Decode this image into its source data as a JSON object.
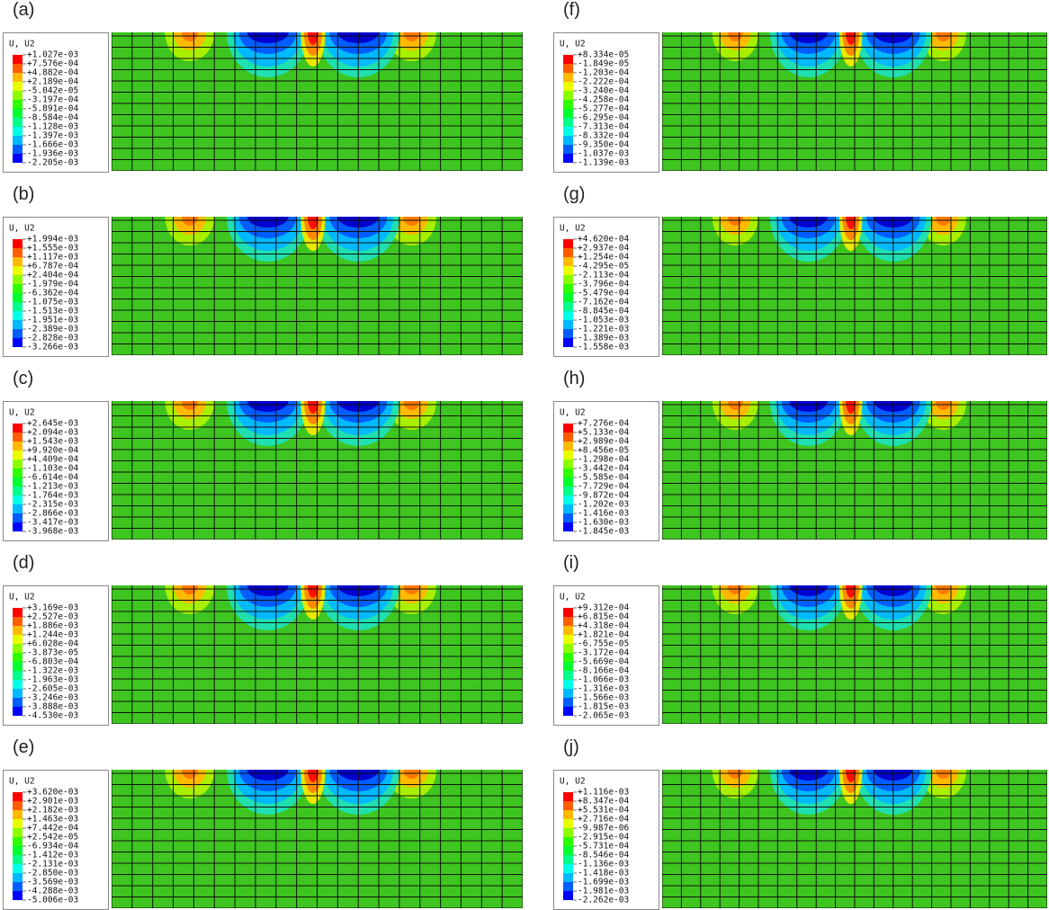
{
  "panels": [
    {
      "label": "(a)",
      "legend_title": "U, U2",
      "legend_values": [
        "+1.027e-03",
        "+7.576e-04",
        "+4.882e-04",
        "+2.189e-04",
        "-5.042e-05",
        "-3.197e-04",
        "-5.891e-04",
        "-8.584e-04",
        "-1.128e-03",
        "-1.397e-03",
        "-1.666e-03",
        "-1.936e-03",
        "-2.205e-03"
      ]
    },
    {
      "label": "(b)",
      "legend_title": "U, U2",
      "legend_values": [
        "+1.994e-03",
        "+1.555e-03",
        "+1.117e-03",
        "+6.787e-04",
        "+2.404e-04",
        "-1.979e-04",
        "-6.362e-04",
        "-1.075e-03",
        "-1.513e-03",
        "-1.951e-03",
        "-2.389e-03",
        "-2.828e-03",
        "-3.266e-03"
      ]
    },
    {
      "label": "(c)",
      "legend_title": "U, U2",
      "legend_values": [
        "+2.645e-03",
        "+2.094e-03",
        "+1.543e-03",
        "+9.920e-04",
        "+4.409e-04",
        "-1.103e-04",
        "-6.614e-04",
        "-1.213e-03",
        "-1.764e-03",
        "-2.315e-03",
        "-2.866e-03",
        "-3.417e-03",
        "-3.968e-03"
      ]
    },
    {
      "label": "(d)",
      "legend_title": "U, U2",
      "legend_values": [
        "+3.169e-03",
        "+2.527e-03",
        "+1.886e-03",
        "+1.244e-03",
        "+6.028e-04",
        "-3.873e-05",
        "-6.803e-04",
        "-1.322e-03",
        "-1.963e-03",
        "-2.605e-03",
        "-3.246e-03",
        "-3.888e-03",
        "-4.530e-03"
      ]
    },
    {
      "label": "(e)",
      "legend_title": "U, U2",
      "legend_values": [
        "+3.620e-03",
        "+2.901e-03",
        "+2.182e-03",
        "+1.463e-03",
        "+7.442e-04",
        "+2.542e-05",
        "-6.934e-04",
        "-1.412e-03",
        "-2.131e-03",
        "-2.850e-03",
        "-3.569e-03",
        "-4.288e-03",
        "-5.006e-03"
      ]
    },
    {
      "label": "(f)",
      "legend_title": "U, U2",
      "legend_values": [
        "+8.334e-05",
        "-1.849e-05",
        "-1.203e-04",
        "-2.222e-04",
        "-3.240e-04",
        "-4.258e-04",
        "-5.277e-04",
        "-6.295e-04",
        "-7.313e-04",
        "-8.332e-04",
        "-9.350e-04",
        "-1.037e-03",
        "-1.139e-03"
      ]
    },
    {
      "label": "(g)",
      "legend_title": "U, U2",
      "legend_values": [
        "+4.620e-04",
        "+2.937e-04",
        "+1.254e-04",
        "-4.295e-05",
        "-2.113e-04",
        "-3.796e-04",
        "-5.479e-04",
        "-7.162e-04",
        "-8.845e-04",
        "-1.053e-03",
        "-1.221e-03",
        "-1.389e-03",
        "-1.558e-03"
      ]
    },
    {
      "label": "(h)",
      "legend_title": "U, U2",
      "legend_values": [
        "+7.276e-04",
        "+5.133e-04",
        "+2.989e-04",
        "+8.456e-05",
        "-1.298e-04",
        "-3.442e-04",
        "-5.585e-04",
        "-7.729e-04",
        "-9.872e-04",
        "-1.202e-03",
        "-1.416e-03",
        "-1.630e-03",
        "-1.845e-03"
      ]
    },
    {
      "label": "(i)",
      "legend_title": "U, U2",
      "legend_values": [
        "+9.312e-04",
        "+6.815e-04",
        "+4.318e-04",
        "+1.821e-04",
        "-6.755e-05",
        "-3.172e-04",
        "-5.669e-04",
        "-8.166e-04",
        "-1.066e-03",
        "-1.316e-03",
        "-1.566e-03",
        "-1.815e-03",
        "-2.065e-03"
      ]
    },
    {
      "label": "(j)",
      "legend_title": "U, U2",
      "legend_values": [
        "+1.116e-03",
        "+8.347e-04",
        "+5.531e-04",
        "+2.716e-04",
        "-9.987e-06",
        "-2.915e-04",
        "-5.731e-04",
        "-8.546e-04",
        "-1.136e-03",
        "-1.418e-03",
        "-1.699e-03",
        "-1.981e-03",
        "-2.262e-03"
      ]
    }
  ]
}
